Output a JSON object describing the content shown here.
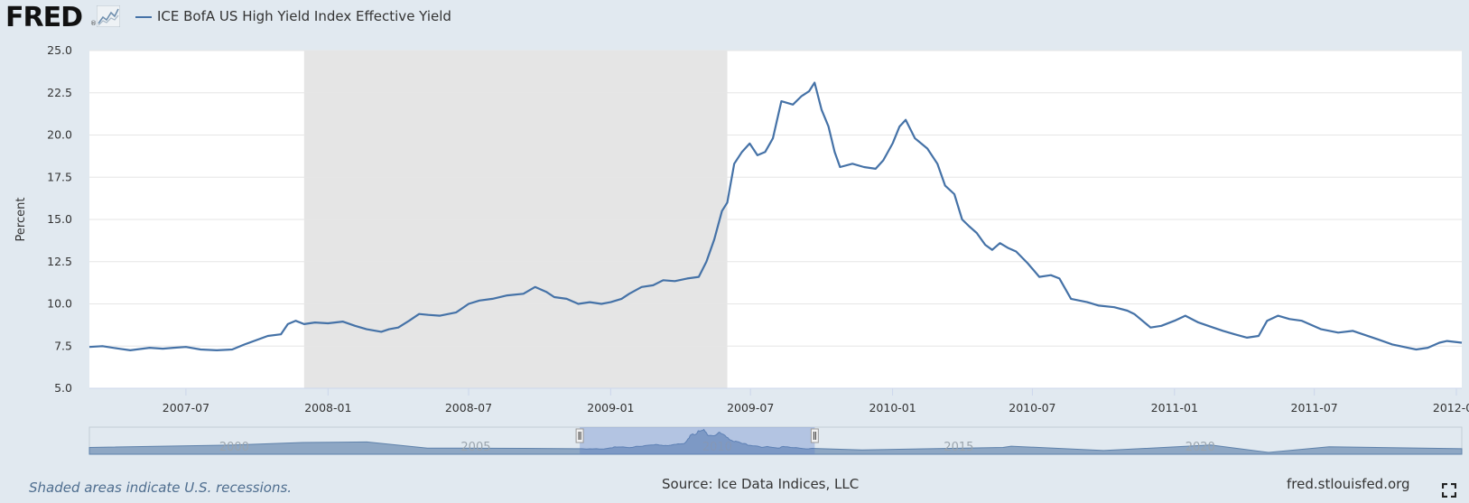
{
  "header": {
    "logo_text": "FRED",
    "logo_registered": "®",
    "logo_icon": "line-chart-icon",
    "legend_label": "ICE BofA US High Yield Index Effective Yield"
  },
  "chart_data": {
    "type": "line",
    "title": "",
    "xlabel": "",
    "ylabel": "Percent",
    "ylim": [
      5.0,
      25.0
    ],
    "yticks": [
      "5.0",
      "7.5",
      "10.0",
      "12.5",
      "15.0",
      "17.5",
      "20.0",
      "22.5",
      "25.0"
    ],
    "xlim": [
      "2007-02-26",
      "2012-01-08"
    ],
    "xticks": [
      "2007-07",
      "2008-01",
      "2008-07",
      "2009-01",
      "2009-07",
      "2010-01",
      "2010-07",
      "2011-01",
      "2011-07",
      "2012-01"
    ],
    "grid": true,
    "legend": "top-left",
    "recession": {
      "start": "2007-12-01",
      "end": "2009-06-01",
      "color": "#e5e5e5"
    },
    "series": [
      {
        "name": "ICE BofA US High Yield Index Effective Yield",
        "color": "#4572a7",
        "points": [
          [
            "2007-02-26",
            7.45
          ],
          [
            "2007-03-15",
            7.5
          ],
          [
            "2007-04-05",
            7.35
          ],
          [
            "2007-04-20",
            7.25
          ],
          [
            "2007-05-15",
            7.4
          ],
          [
            "2007-06-01",
            7.35
          ],
          [
            "2007-06-15",
            7.4
          ],
          [
            "2007-07-01",
            7.45
          ],
          [
            "2007-07-20",
            7.3
          ],
          [
            "2007-08-10",
            7.25
          ],
          [
            "2007-08-30",
            7.3
          ],
          [
            "2007-09-15",
            7.6
          ],
          [
            "2007-10-15",
            8.1
          ],
          [
            "2007-11-01",
            8.2
          ],
          [
            "2007-11-10",
            8.8
          ],
          [
            "2007-11-20",
            9.0
          ],
          [
            "2007-12-01",
            8.8
          ],
          [
            "2007-12-15",
            8.9
          ],
          [
            "2008-01-01",
            8.85
          ],
          [
            "2008-01-20",
            8.95
          ],
          [
            "2008-02-05",
            8.7
          ],
          [
            "2008-02-20",
            8.5
          ],
          [
            "2008-03-10",
            8.35
          ],
          [
            "2008-03-20",
            8.5
          ],
          [
            "2008-04-01",
            8.6
          ],
          [
            "2008-04-15",
            9.0
          ],
          [
            "2008-04-28",
            9.4
          ],
          [
            "2008-05-10",
            9.35
          ],
          [
            "2008-05-25",
            9.3
          ],
          [
            "2008-06-15",
            9.5
          ],
          [
            "2008-07-01",
            10.0
          ],
          [
            "2008-07-15",
            10.2
          ],
          [
            "2008-08-01",
            10.3
          ],
          [
            "2008-08-20",
            10.5
          ],
          [
            "2008-09-10",
            10.6
          ],
          [
            "2008-09-25",
            11.0
          ],
          [
            "2008-10-10",
            10.7
          ],
          [
            "2008-10-20",
            10.4
          ],
          [
            "2008-11-05",
            10.3
          ],
          [
            "2008-11-20",
            10.0
          ],
          [
            "2008-12-05",
            10.1
          ],
          [
            "2008-12-20",
            10.0
          ],
          [
            "2009-01-01",
            10.1
          ],
          [
            "2009-01-15",
            10.3
          ],
          [
            "2009-01-25",
            10.6
          ],
          [
            "2009-02-10",
            11.0
          ],
          [
            "2009-02-25",
            11.1
          ],
          [
            "2009-03-10",
            11.4
          ],
          [
            "2009-03-25",
            11.35
          ],
          [
            "2009-04-10",
            11.5
          ],
          [
            "2009-04-25",
            11.6
          ],
          [
            "2009-05-05",
            12.5
          ],
          [
            "2009-05-15",
            13.8
          ],
          [
            "2009-05-25",
            15.5
          ],
          [
            "2009-06-01",
            16.0
          ],
          [
            "2009-06-10",
            18.3
          ],
          [
            "2009-06-20",
            19.0
          ],
          [
            "2009-06-30",
            19.5
          ],
          [
            "2009-07-10",
            18.8
          ],
          [
            "2009-07-20",
            19.0
          ],
          [
            "2009-07-30",
            19.8
          ],
          [
            "2009-08-10",
            22.0
          ],
          [
            "2009-08-25",
            21.8
          ],
          [
            "2009-09-05",
            22.3
          ],
          [
            "2009-09-15",
            22.6
          ],
          [
            "2009-09-22",
            23.1
          ],
          [
            "2009-10-01",
            21.5
          ],
          [
            "2009-10-10",
            20.5
          ],
          [
            "2009-10-18",
            19.0
          ],
          [
            "2009-10-25",
            18.1
          ],
          [
            "2009-11-10",
            18.3
          ],
          [
            "2009-11-25",
            18.1
          ],
          [
            "2009-12-10",
            18.0
          ],
          [
            "2009-12-20",
            18.5
          ],
          [
            "2010-01-01",
            19.5
          ],
          [
            "2010-01-10",
            20.5
          ],
          [
            "2010-01-18",
            20.9
          ],
          [
            "2010-01-30",
            19.8
          ],
          [
            "2010-02-15",
            19.2
          ],
          [
            "2010-02-28",
            18.3
          ],
          [
            "2010-03-10",
            17.0
          ],
          [
            "2010-03-22",
            16.5
          ],
          [
            "2010-04-01",
            15.0
          ],
          [
            "2010-04-10",
            14.6
          ],
          [
            "2010-04-20",
            14.2
          ],
          [
            "2010-05-01",
            13.5
          ],
          [
            "2010-05-10",
            13.2
          ],
          [
            "2010-05-20",
            13.6
          ],
          [
            "2010-05-31",
            13.3
          ],
          [
            "2010-06-10",
            13.1
          ],
          [
            "2010-06-25",
            12.4
          ],
          [
            "2010-07-10",
            11.6
          ],
          [
            "2010-07-25",
            11.7
          ],
          [
            "2010-08-05",
            11.5
          ],
          [
            "2010-08-20",
            10.3
          ],
          [
            "2010-09-10",
            10.1
          ],
          [
            "2010-09-25",
            9.9
          ],
          [
            "2010-10-15",
            9.8
          ],
          [
            "2010-11-01",
            9.6
          ],
          [
            "2010-11-10",
            9.4
          ],
          [
            "2010-12-01",
            8.6
          ],
          [
            "2010-12-15",
            8.7
          ],
          [
            "2011-01-01",
            9.0
          ],
          [
            "2011-01-15",
            9.3
          ],
          [
            "2011-02-01",
            8.9
          ],
          [
            "2011-02-20",
            8.6
          ],
          [
            "2011-03-05",
            8.4
          ],
          [
            "2011-03-20",
            8.2
          ],
          [
            "2011-04-05",
            8.0
          ],
          [
            "2011-04-20",
            8.1
          ],
          [
            "2011-05-01",
            9.0
          ],
          [
            "2011-05-15",
            9.3
          ],
          [
            "2011-05-30",
            9.1
          ],
          [
            "2011-06-15",
            9.0
          ],
          [
            "2011-07-10",
            8.5
          ],
          [
            "2011-08-01",
            8.3
          ],
          [
            "2011-08-20",
            8.4
          ],
          [
            "2011-09-15",
            8.0
          ],
          [
            "2011-10-10",
            7.6
          ],
          [
            "2011-10-30",
            7.4
          ],
          [
            "2011-11-10",
            7.3
          ],
          [
            "2011-11-25",
            7.4
          ],
          [
            "2011-12-10",
            7.7
          ],
          [
            "2011-12-20",
            7.8
          ],
          [
            "2012-01-08",
            7.7
          ]
        ]
      }
    ]
  },
  "navigator": {
    "year_labels": [
      "2000",
      "2005",
      "2010",
      "2015",
      "2020"
    ],
    "selection_start": "2007-02-26",
    "selection_end": "2012-01-08"
  },
  "footer": {
    "recession_note": "Shaded areas indicate U.S. recessions.",
    "source": "Source: Ice Data Indices, LLC",
    "url": "fred.stlouisfed.org",
    "fullscreen_icon": "fullscreen-icon"
  }
}
